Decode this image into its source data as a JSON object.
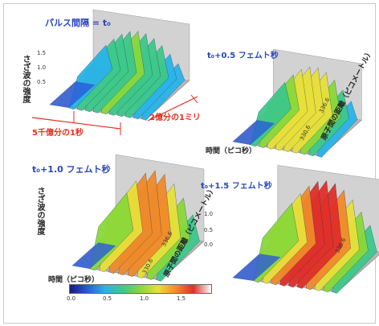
{
  "panels": [
    {
      "label": "パルス間隔 = t₀"
    },
    {
      "label": "t₀+0.5 フェムト秒"
    },
    {
      "label": "t₀+1.0 フェムト秒"
    },
    {
      "label": "t₀+1.5 フェムト秒"
    }
  ],
  "axes": {
    "z": "さざ波の強度",
    "time": "時間（ピコ秒）",
    "distance": "原子間の距離（ピコメートル）",
    "dist_ticks": [
      "330.6",
      "336.6"
    ],
    "z_ticks": [
      "1.5",
      "1.0",
      "0.5",
      "0.0"
    ]
  },
  "annotations": {
    "time_scale": "5千億分の1秒",
    "distance_scale": "2億分の1ミリ"
  },
  "colorbar": {
    "ticks": [
      "0.0",
      "0.5",
      "1.0",
      "1.5"
    ],
    "colors": [
      "#1a1a7a",
      "#2a5ad8",
      "#2ab4e8",
      "#3ec88a",
      "#8ad83a",
      "#e8e03a",
      "#f08a2a",
      "#e0302a",
      "#ffffff"
    ]
  }
}
